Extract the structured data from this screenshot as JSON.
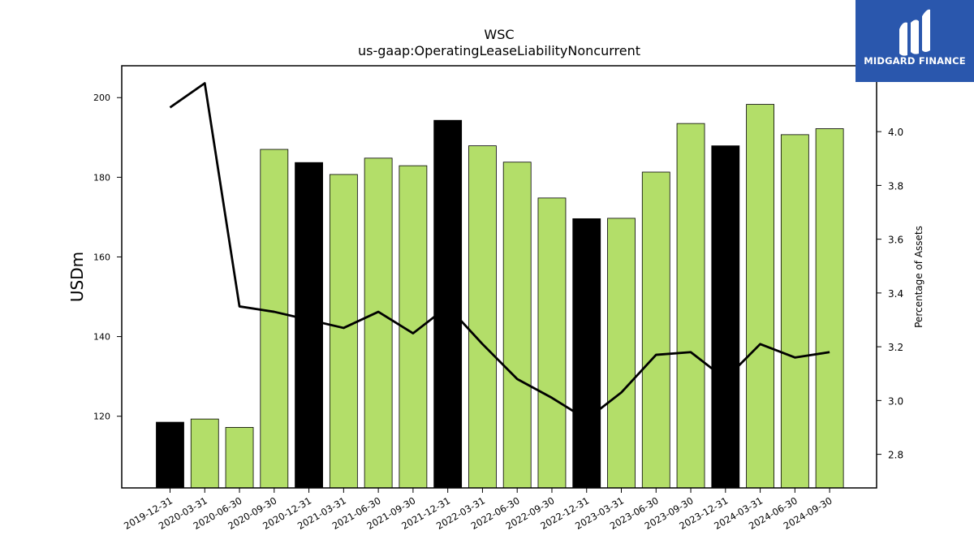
{
  "chart_data": {
    "type": "bar",
    "title": "WSC",
    "subtitle": "us-gaap:OperatingLeaseLiabilityNoncurrent",
    "ylabel": "USDm",
    "y2label": "Percentage of Assets",
    "categories": [
      "2019-12-31",
      "2020-03-31",
      "2020-06-30",
      "2020-09-30",
      "2020-12-31",
      "2021-03-31",
      "2021-06-30",
      "2021-09-30",
      "2021-12-31",
      "2022-03-31",
      "2022-06-30",
      "2022-09-30",
      "2022-12-31",
      "2023-03-31",
      "2023-06-30",
      "2023-09-30",
      "2023-12-31",
      "2024-03-31",
      "2024-06-30",
      "2024-09-30"
    ],
    "series": [
      {
        "type": "bar",
        "axis": "left",
        "values": [
          118.5,
          119.3,
          117.2,
          187.0,
          183.7,
          180.7,
          184.8,
          182.9,
          194.3,
          187.9,
          183.8,
          174.8,
          169.6,
          169.7,
          181.3,
          193.5,
          187.9,
          198.3,
          190.7,
          192.2
        ],
        "colors": [
          "#000000",
          "#b3de69",
          "#b3de69",
          "#b3de69",
          "#000000",
          "#b3de69",
          "#b3de69",
          "#b3de69",
          "#000000",
          "#b3de69",
          "#b3de69",
          "#b3de69",
          "#000000",
          "#b3de69",
          "#b3de69",
          "#b3de69",
          "#000000",
          "#b3de69",
          "#b3de69",
          "#b3de69"
        ]
      },
      {
        "type": "line",
        "axis": "right",
        "color": "#000000",
        "values": [
          4.09,
          4.18,
          3.35,
          3.33,
          3.3,
          3.27,
          3.33,
          3.25,
          3.35,
          3.21,
          3.08,
          3.01,
          2.93,
          3.03,
          3.17,
          3.18,
          3.08,
          3.21,
          3.16,
          3.18
        ]
      }
    ],
    "ylim": [
      102,
      208
    ],
    "y2lim": [
      2.675,
      4.245
    ],
    "yticks": [
      120,
      140,
      160,
      180,
      200
    ],
    "y2ticks": [
      2.8,
      3.0,
      3.2,
      3.4,
      3.6,
      3.8,
      4.0
    ],
    "grid": false,
    "legend": "none"
  },
  "logo": {
    "text": "MIDGARD FINANCE",
    "background": "#2a57ad"
  }
}
